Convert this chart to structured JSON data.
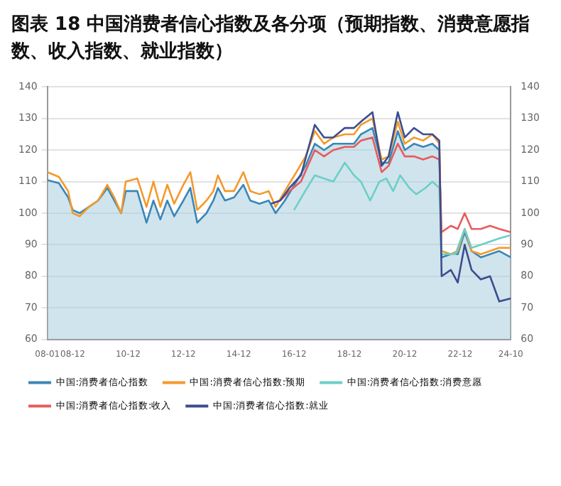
{
  "chart_data": {
    "type": "line",
    "title": "图表 18 中国消费者信心指数及各分项（预期指数、消费意愿指数、收入指数、就业指数）",
    "xlim": [
      "2008-01",
      "2024-10"
    ],
    "xticks": [
      {
        "value": "2008-01",
        "label": "08-01"
      },
      {
        "value": "2008-12",
        "label": "08-12"
      },
      {
        "value": "2010-12",
        "label": "10-12"
      },
      {
        "value": "2012-12",
        "label": "12-12"
      },
      {
        "value": "2014-12",
        "label": "14-12"
      },
      {
        "value": "2016-12",
        "label": "16-12"
      },
      {
        "value": "2018-12",
        "label": "18-12"
      },
      {
        "value": "2020-12",
        "label": "20-12"
      },
      {
        "value": "2022-12",
        "label": "22-12"
      },
      {
        "value": "2024-10",
        "label": "24-10"
      }
    ],
    "ylim": [
      60,
      140
    ],
    "yticks": [
      60,
      70,
      80,
      90,
      100,
      110,
      120,
      130,
      140
    ],
    "y2lim": [
      60,
      140
    ],
    "y2ticks": [
      60,
      70,
      80,
      90,
      100,
      110,
      120,
      130,
      140
    ],
    "grid": "y",
    "legend": "bottom",
    "series": [
      {
        "name": "中国:消费者信心指数",
        "type": "area",
        "color": "#3a87b7",
        "x": [
          "2008-01",
          "2008-06",
          "2008-10",
          "2008-12",
          "2009-03",
          "2009-07",
          "2009-11",
          "2010-03",
          "2010-06",
          "2010-09",
          "2010-11",
          "2011-04",
          "2011-08",
          "2011-11",
          "2012-02",
          "2012-05",
          "2012-08",
          "2012-12",
          "2013-03",
          "2013-06",
          "2013-10",
          "2014-01",
          "2014-03",
          "2014-06",
          "2014-10",
          "2015-02",
          "2015-05",
          "2015-09",
          "2016-01",
          "2016-04",
          "2016-08",
          "2017-01",
          "2017-05",
          "2017-09",
          "2018-01",
          "2018-05",
          "2018-10",
          "2019-02",
          "2019-05",
          "2019-10",
          "2020-02",
          "2020-05",
          "2020-09",
          "2020-12",
          "2021-04",
          "2021-08",
          "2021-12",
          "2022-03",
          "2022-04",
          "2022-08",
          "2022-11",
          "2023-02",
          "2023-05",
          "2023-09",
          "2024-01",
          "2024-05",
          "2024-10"
        ],
        "values": [
          110.5,
          109.5,
          105,
          101,
          100,
          102,
          104,
          108,
          104,
          100,
          107,
          107,
          97,
          104,
          98,
          104,
          99,
          104,
          108,
          97,
          100,
          104,
          108,
          104,
          105,
          109,
          104,
          103,
          104,
          100,
          104,
          110,
          115,
          122,
          120,
          122,
          122,
          122,
          125,
          127,
          116,
          116,
          126,
          120,
          122,
          121,
          122,
          120,
          86,
          87,
          87,
          94,
          88,
          86,
          87,
          88,
          86
        ]
      },
      {
        "name": "中国:消费者信心指数:预期",
        "color": "#f39a2c",
        "x": [
          "2008-01",
          "2008-06",
          "2008-10",
          "2008-12",
          "2009-03",
          "2009-07",
          "2009-11",
          "2010-03",
          "2010-06",
          "2010-09",
          "2010-11",
          "2011-04",
          "2011-08",
          "2011-11",
          "2012-02",
          "2012-05",
          "2012-08",
          "2012-12",
          "2013-03",
          "2013-06",
          "2013-10",
          "2014-01",
          "2014-03",
          "2014-06",
          "2014-10",
          "2015-02",
          "2015-05",
          "2015-09",
          "2016-01",
          "2016-04",
          "2016-08",
          "2017-01",
          "2017-05",
          "2017-09",
          "2018-01",
          "2018-05",
          "2018-10",
          "2019-02",
          "2019-05",
          "2019-10",
          "2020-02",
          "2020-05",
          "2020-09",
          "2020-12",
          "2021-04",
          "2021-08",
          "2021-12",
          "2022-03",
          "2022-04",
          "2022-08",
          "2022-11",
          "2023-02",
          "2023-05",
          "2023-09",
          "2024-01",
          "2024-05",
          "2024-10"
        ],
        "values": [
          113,
          111.5,
          107,
          100,
          99,
          102,
          104,
          109,
          105,
          100,
          110,
          111,
          102,
          110,
          102,
          109,
          103,
          109,
          113,
          101,
          104,
          107,
          112,
          107,
          107,
          113,
          107,
          106,
          107,
          102,
          107,
          113,
          118,
          126,
          122,
          124,
          125,
          125,
          128,
          130,
          117,
          118,
          129,
          122,
          124,
          123,
          125,
          122,
          88,
          87,
          88,
          95,
          88,
          87,
          88,
          89,
          89
        ]
      },
      {
        "name": "中国:消费者信心指数:消费意愿",
        "color": "#6ccfc6",
        "x": [
          "2016-12",
          "2017-04",
          "2017-09",
          "2018-01",
          "2018-05",
          "2018-10",
          "2019-02",
          "2019-05",
          "2019-09",
          "2020-01",
          "2020-04",
          "2020-07",
          "2020-10",
          "2021-02",
          "2021-05",
          "2021-09",
          "2021-12",
          "2022-03",
          "2022-04",
          "2022-07",
          "2022-10",
          "2023-02",
          "2023-05",
          "2023-09",
          "2024-01",
          "2024-05",
          "2024-10"
        ],
        "values": [
          101,
          106,
          112,
          111,
          110,
          116,
          112,
          110,
          104,
          110,
          111,
          107,
          112,
          108,
          106,
          108,
          110,
          108,
          87,
          87,
          87,
          95,
          89,
          90,
          91,
          92,
          93
        ]
      },
      {
        "name": "中国:消费者信心指数:收入",
        "color": "#e85c5c",
        "x": [
          "2016-06",
          "2016-10",
          "2017-03",
          "2017-09",
          "2018-01",
          "2018-05",
          "2018-10",
          "2019-02",
          "2019-05",
          "2019-10",
          "2020-02",
          "2020-05",
          "2020-09",
          "2020-12",
          "2021-04",
          "2021-08",
          "2021-12",
          "2022-03",
          "2022-04",
          "2022-08",
          "2022-11",
          "2023-02",
          "2023-05",
          "2023-09",
          "2024-01",
          "2024-05",
          "2024-10"
        ],
        "values": [
          104,
          107,
          110,
          120,
          118,
          120,
          121,
          121,
          123,
          124,
          113,
          115,
          122,
          118,
          118,
          117,
          118,
          117,
          94,
          96,
          95,
          100,
          95,
          95,
          96,
          95,
          94
        ]
      },
      {
        "name": "中国:消费者信心指数:就业",
        "color": "#3c4d8f",
        "x": [
          "2016-02",
          "2016-06",
          "2016-10",
          "2017-03",
          "2017-09",
          "2018-01",
          "2018-05",
          "2018-10",
          "2019-02",
          "2019-05",
          "2019-10",
          "2020-02",
          "2020-05",
          "2020-09",
          "2020-12",
          "2021-04",
          "2021-08",
          "2021-12",
          "2022-03",
          "2022-04",
          "2022-08",
          "2022-11",
          "2023-02",
          "2023-05",
          "2023-09",
          "2024-01",
          "2024-05",
          "2024-10"
        ],
        "values": [
          103,
          104,
          108,
          112,
          128,
          124,
          124,
          127,
          127,
          129,
          132,
          115,
          118,
          132,
          124,
          127,
          125,
          125,
          123,
          80,
          82,
          78,
          90,
          82,
          79,
          80,
          72,
          73
        ]
      }
    ]
  }
}
